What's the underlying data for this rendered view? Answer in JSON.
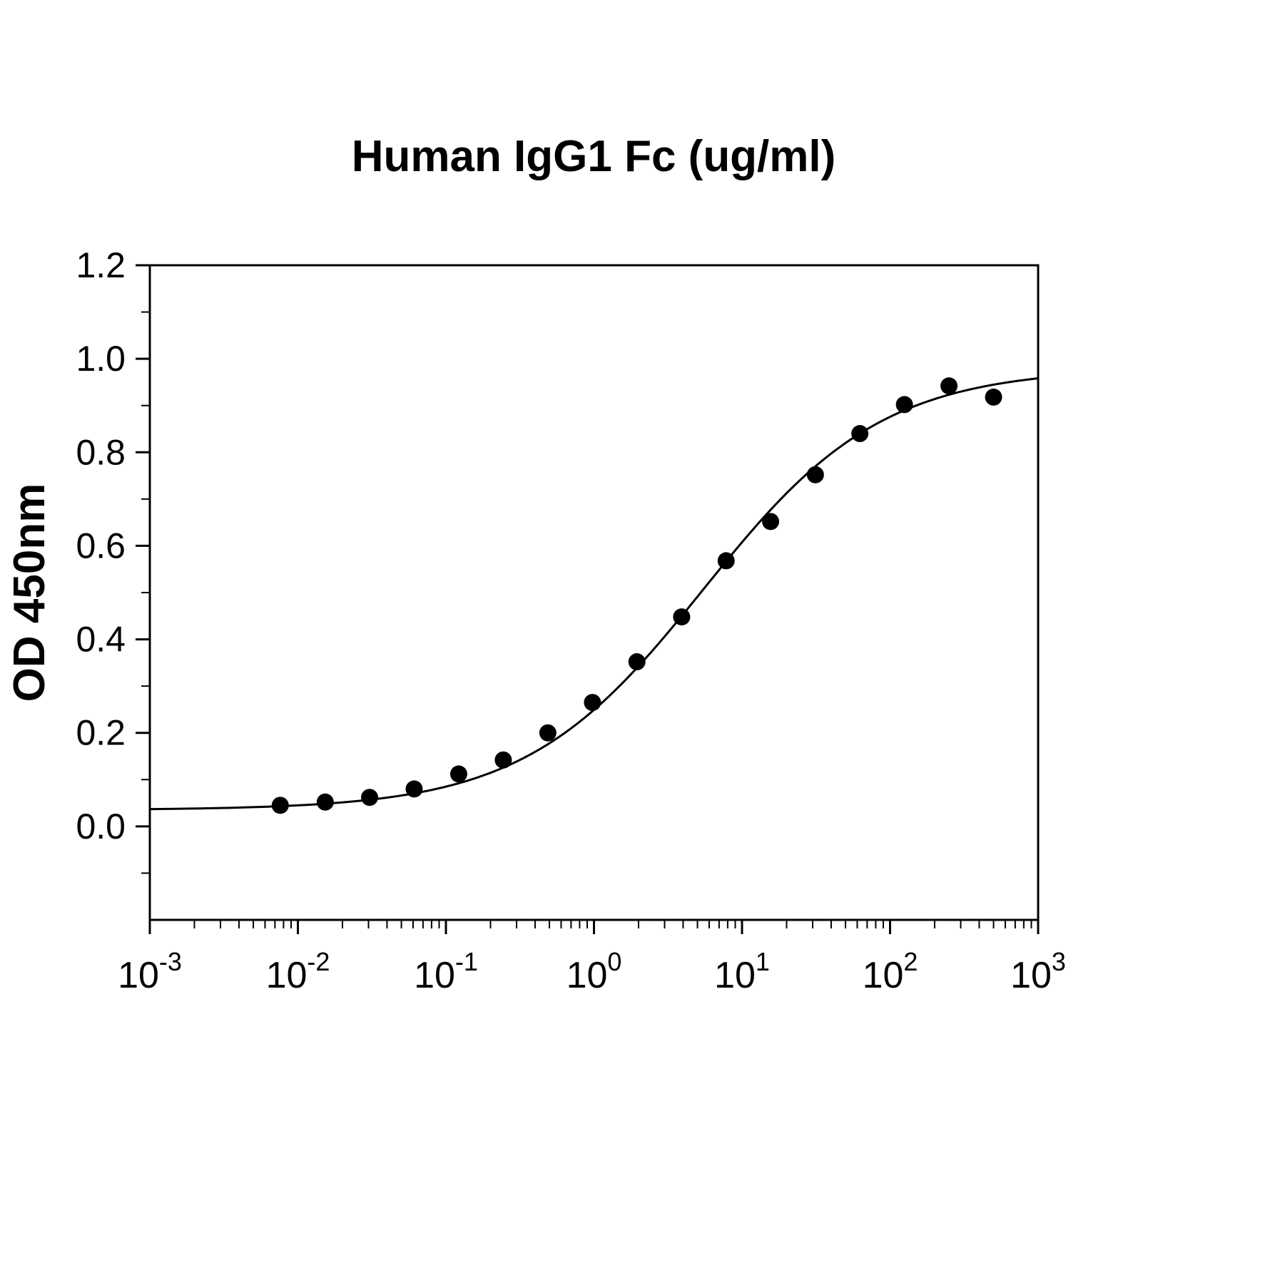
{
  "chart_data": {
    "type": "scatter",
    "title": "Human IgG1 Fc (ug/ml)",
    "xlabel": "",
    "ylabel": "OD 450nm",
    "x_scale": "log",
    "xlim_log": [
      -3,
      3
    ],
    "ylim": [
      -0.2,
      1.2
    ],
    "grid": false,
    "legend": "none",
    "y_ticks": [
      {
        "value": 0.0,
        "label": "0.0"
      },
      {
        "value": 0.2,
        "label": "0.2"
      },
      {
        "value": 0.4,
        "label": "0.4"
      },
      {
        "value": 0.6,
        "label": "0.6"
      },
      {
        "value": 0.8,
        "label": "0.8"
      },
      {
        "value": 1.0,
        "label": "1.0"
      },
      {
        "value": 1.2,
        "label": "1.2"
      }
    ],
    "x_ticks": [
      {
        "exp": -3,
        "base": "10",
        "sup": "-3"
      },
      {
        "exp": -2,
        "base": "10",
        "sup": "-2"
      },
      {
        "exp": -1,
        "base": "10",
        "sup": "-1"
      },
      {
        "exp": 0,
        "base": "10",
        "sup": "0"
      },
      {
        "exp": 1,
        "base": "10",
        "sup": "1"
      },
      {
        "exp": 2,
        "base": "10",
        "sup": "2"
      },
      {
        "exp": 3,
        "base": "10",
        "sup": "3"
      }
    ],
    "points": [
      {
        "x": 0.0076,
        "y": 0.045
      },
      {
        "x": 0.0153,
        "y": 0.052
      },
      {
        "x": 0.0305,
        "y": 0.062
      },
      {
        "x": 0.061,
        "y": 0.08
      },
      {
        "x": 0.122,
        "y": 0.112
      },
      {
        "x": 0.244,
        "y": 0.142
      },
      {
        "x": 0.488,
        "y": 0.2
      },
      {
        "x": 0.977,
        "y": 0.265
      },
      {
        "x": 1.95,
        "y": 0.352
      },
      {
        "x": 3.91,
        "y": 0.448
      },
      {
        "x": 7.81,
        "y": 0.568
      },
      {
        "x": 15.6,
        "y": 0.652
      },
      {
        "x": 31.3,
        "y": 0.752
      },
      {
        "x": 62.5,
        "y": 0.84
      },
      {
        "x": 125,
        "y": 0.902
      },
      {
        "x": 250,
        "y": 0.942
      },
      {
        "x": 500,
        "y": 0.918
      }
    ],
    "fit": {
      "type": "4PL",
      "min": 0.035,
      "max": 0.98,
      "ec50": 5.5,
      "hill": 0.72
    },
    "colors": {
      "axis": "#000000",
      "line": "#000000",
      "marker": "#000000",
      "text": "#000000",
      "background": "#ffffff"
    }
  }
}
